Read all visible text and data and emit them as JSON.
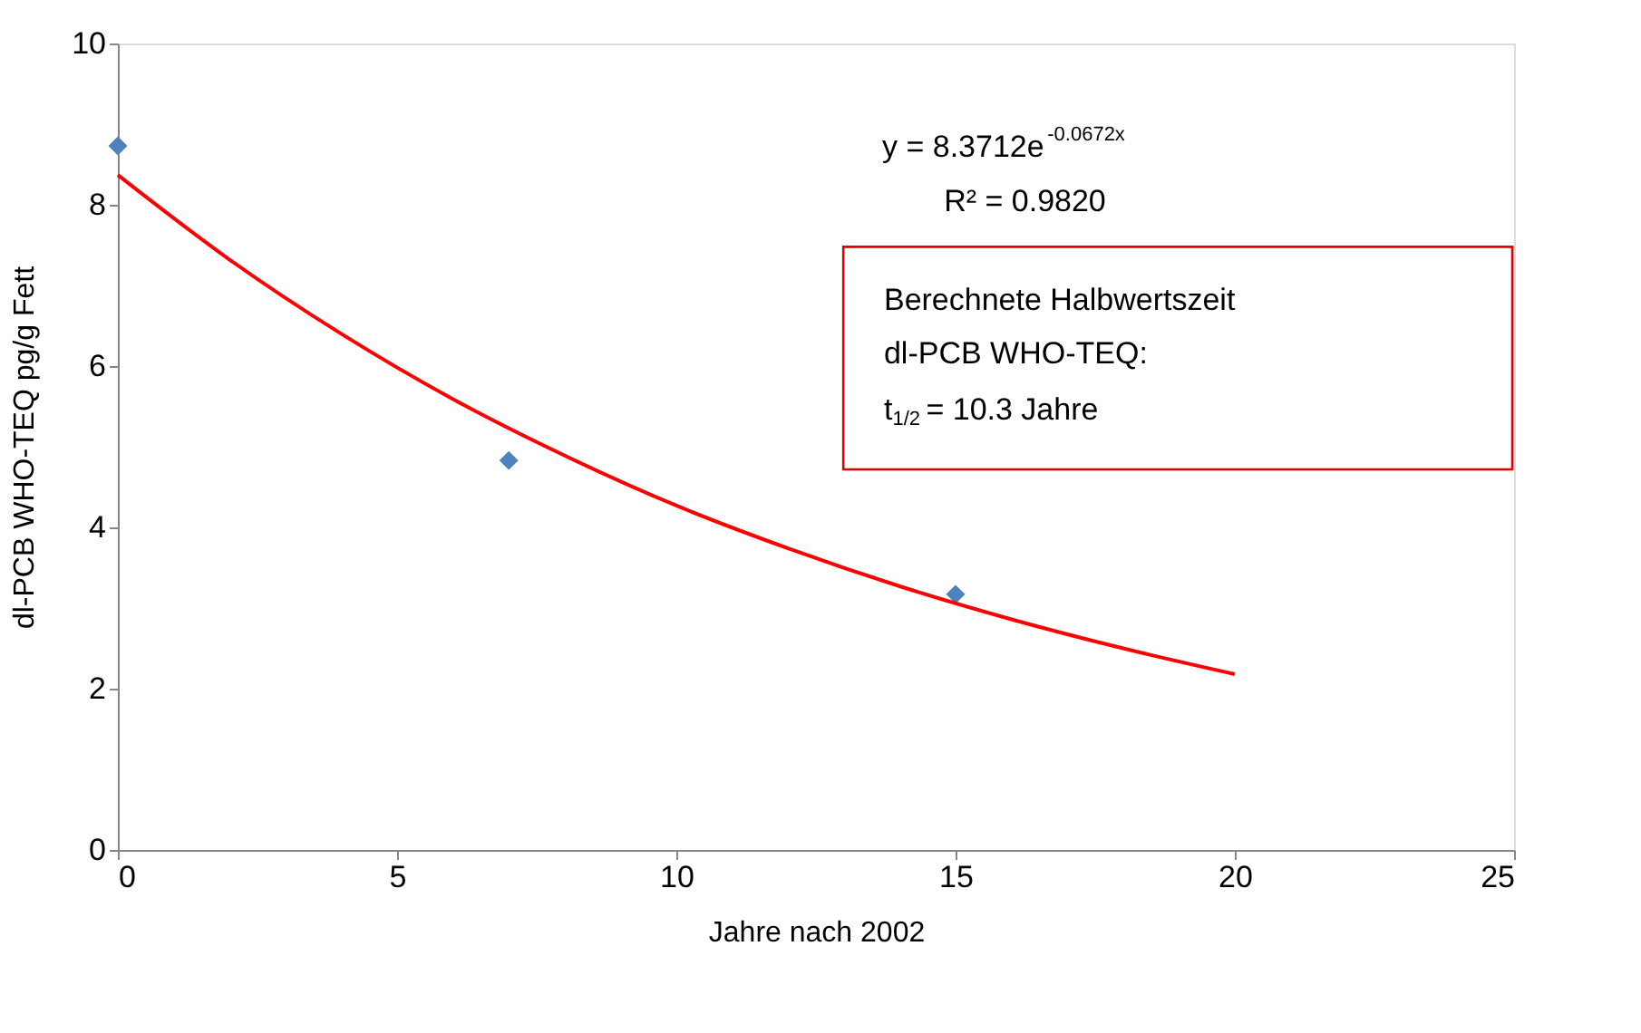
{
  "chart_data": {
    "type": "scatter",
    "xlabel": "Jahre nach 2002",
    "ylabel": "dl-PCB WHO-TEQ pg/g Fett",
    "xlim": [
      0,
      25
    ],
    "xticks": [
      0,
      5,
      10,
      15,
      20,
      25
    ],
    "ylim": [
      0,
      10
    ],
    "yticks": [
      0,
      2,
      4,
      6,
      8,
      10
    ],
    "grid": false,
    "marker": "diamond",
    "series": [
      {
        "color": "#4f81bd",
        "x": [
          0,
          7,
          15
        ],
        "values": [
          8.73,
          4.83,
          3.17
        ]
      },
      {
        "type": "line",
        "color": "#ff0000",
        "line_style": "solid",
        "marker": "none",
        "x": [
          0,
          2,
          4,
          6,
          8,
          10,
          12,
          14,
          16,
          18,
          20
        ],
        "values": [
          8.37,
          7.32,
          6.4,
          5.59,
          4.89,
          4.27,
          3.74,
          3.27,
          2.86,
          2.5,
          2.18
        ]
      }
    ],
    "annotations": [
      "y = 8.3712e$^{-0.0672x}$",
      "R² = 0.9820",
      "Berechnete Halbwertszeit",
      "dl-PCB WHO-TEQ:",
      "t$_{1/2}$ = 10.3 Jahre"
    ]
  }
}
